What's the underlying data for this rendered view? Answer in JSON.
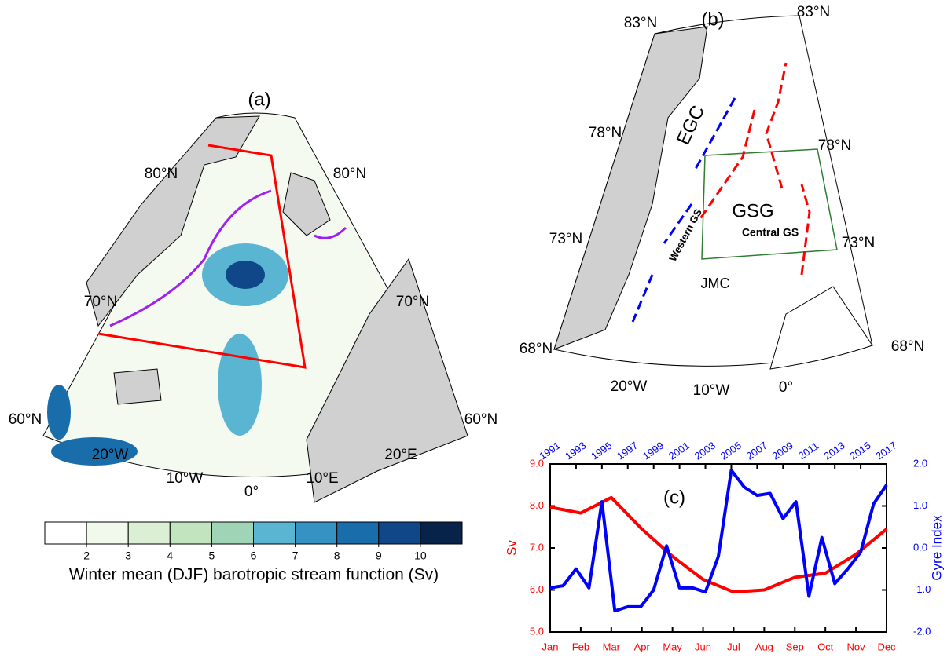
{
  "panel_a": {
    "label": "(a)",
    "lat_labels": [
      "80°N",
      "80°N",
      "70°N",
      "70°N",
      "60°N",
      "60°N"
    ],
    "lon_labels": [
      "20°W",
      "10°W",
      "0°",
      "10°E",
      "20°E"
    ],
    "colorbar": {
      "ticks": [
        2,
        3,
        4,
        5,
        6,
        7,
        8,
        9,
        10
      ],
      "colors": [
        "#ffffff",
        "#f1f9ec",
        "#dbefd5",
        "#c2e5bf",
        "#9fd5b6",
        "#5ab5d2",
        "#3592c3",
        "#1a6dab",
        "#0f4788",
        "#08234a"
      ],
      "label": "Winter mean (DJF) barotropic stream function (Sv)"
    }
  },
  "panel_b": {
    "label": "(b)",
    "lat_labels": [
      "83°N",
      "83°N",
      "78°N",
      "78°N",
      "73°N",
      "73°N",
      "68°N",
      "68°N"
    ],
    "lon_labels": [
      "20°W",
      "10°W",
      "0°"
    ],
    "annotations": [
      "EGC",
      "GSG",
      "Central GS",
      "Western GS",
      "JMC"
    ]
  },
  "chart_data": {
    "type": "line",
    "label": "(c)",
    "categories": [
      "Jan",
      "Feb",
      "Mar",
      "Apr",
      "May",
      "Jun",
      "Jul",
      "Aug",
      "Sep",
      "Oct",
      "Nov",
      "Dec"
    ],
    "x2lim": [
      1991,
      2017
    ],
    "x2ticks": [
      1991,
      1993,
      1995,
      1997,
      1999,
      2001,
      2003,
      2005,
      2007,
      2009,
      2011,
      2013,
      2015,
      2017
    ],
    "ylabel": "Sv",
    "ylim": [
      5,
      9
    ],
    "yticks": [
      {
        "value": 5,
        "label": "5.0"
      },
      {
        "value": 6,
        "label": "6.0"
      },
      {
        "value": 7,
        "label": "7.0"
      },
      {
        "value": 8,
        "label": "8.0"
      },
      {
        "value": 9,
        "label": "9.0"
      }
    ],
    "y2label": "Gyre Index",
    "y2lim": [
      -2,
      2
    ],
    "y2ticks": [
      {
        "value": -2,
        "label": "-2.0"
      },
      {
        "value": -1,
        "label": "-1.0"
      },
      {
        "value": 0,
        "label": "0.0"
      },
      {
        "value": 1,
        "label": "1.0"
      },
      {
        "value": 2,
        "label": "2.0"
      }
    ],
    "series": [
      {
        "color": "#ff0000",
        "values": [
          7.97,
          7.83,
          8.2,
          7.45,
          6.8,
          6.25,
          5.95,
          6.0,
          6.3,
          6.4,
          6.85,
          7.45
        ]
      },
      {
        "color": "#0000ff",
        "axis": "y2",
        "x": [
          1991,
          1992,
          1993,
          1994,
          1995,
          1996,
          1997,
          1998,
          1999,
          2000,
          2001,
          2002,
          2003,
          2004,
          2005,
          2006,
          2007,
          2008,
          2009,
          2010,
          2011,
          2012,
          2013,
          2014,
          2015,
          2016,
          2017
        ],
        "values": [
          -0.95,
          -0.9,
          -0.5,
          -0.95,
          1.1,
          -1.5,
          -1.4,
          -1.4,
          -1.0,
          0.05,
          -0.95,
          -0.95,
          -1.05,
          -0.2,
          1.85,
          1.45,
          1.25,
          1.3,
          0.7,
          1.1,
          -1.15,
          0.25,
          -0.85,
          -0.5,
          -0.1,
          1.05,
          1.5
        ]
      }
    ]
  }
}
